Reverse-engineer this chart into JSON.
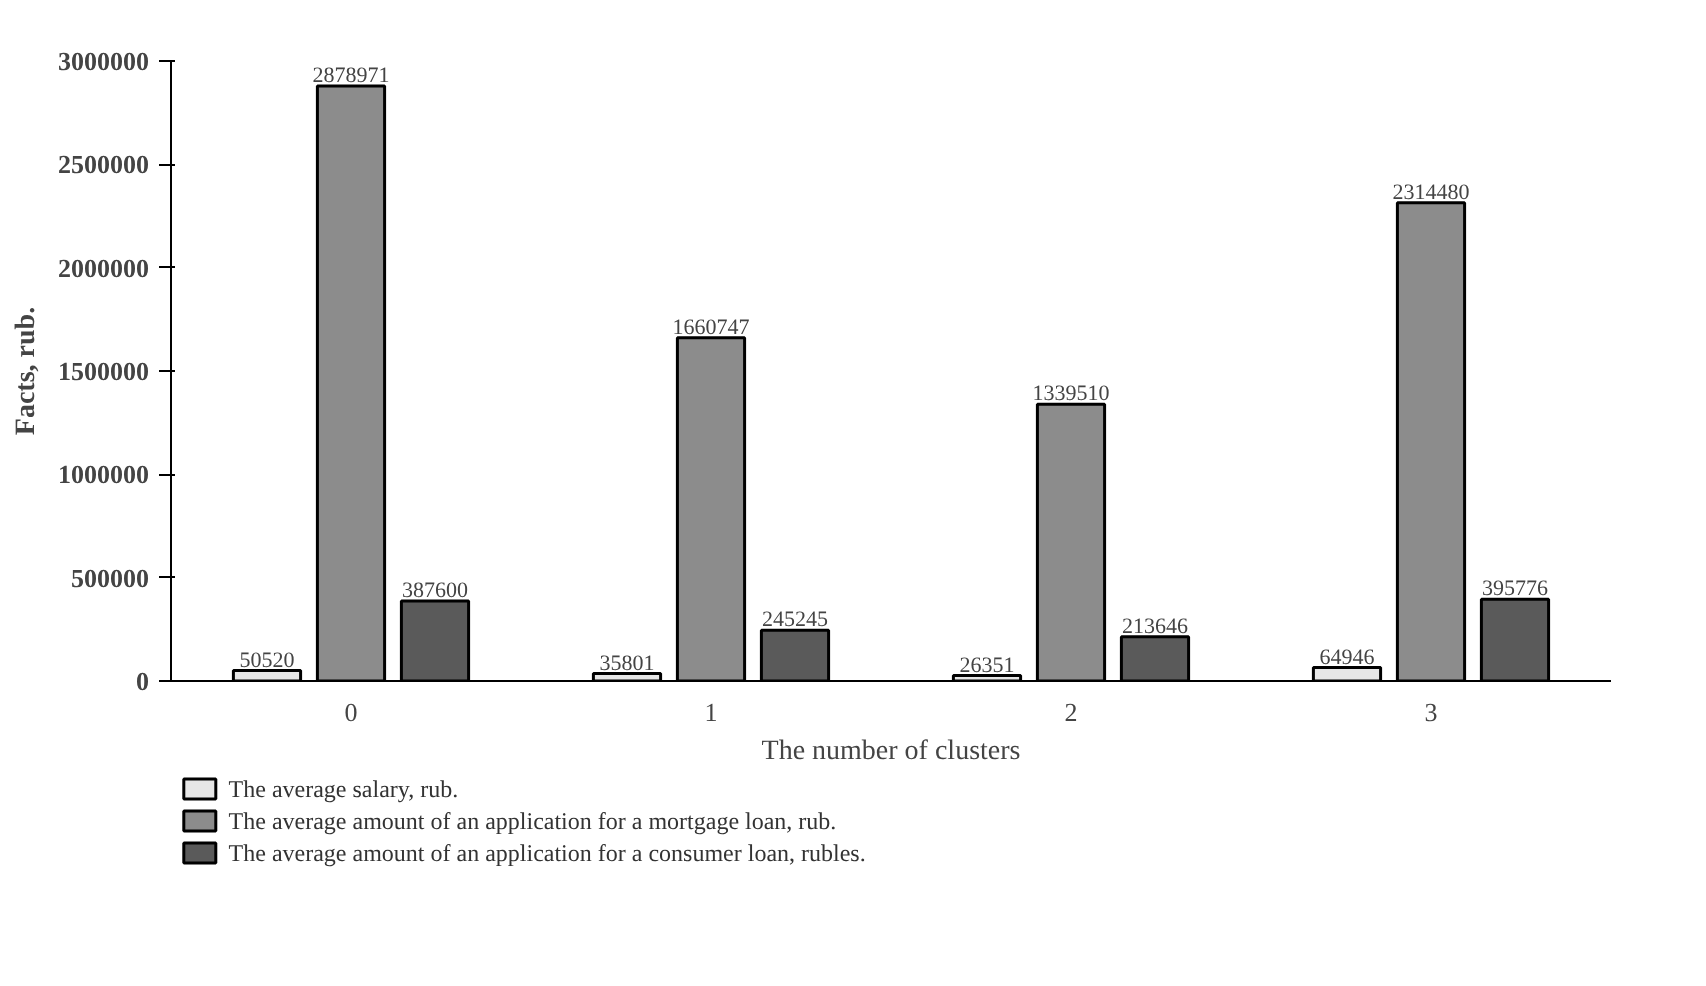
{
  "chart_data": {
    "type": "bar",
    "xlabel": "The number of clusters",
    "ylabel": "Facts, rub.",
    "categories": [
      "0",
      "1",
      "2",
      "3"
    ],
    "series": [
      {
        "name": "The average salary, rub.",
        "color": "#e6e6e6",
        "values": [
          50520,
          35801,
          26351,
          64946
        ]
      },
      {
        "name": "The average amount of an application for a mortgage loan, rub.",
        "color": "#8c8c8c",
        "values": [
          2878971,
          1660747,
          1339510,
          2314480
        ]
      },
      {
        "name": "The average amount of an application for a consumer loan, rubles.",
        "color": "#5a5a5a",
        "values": [
          387600,
          245245,
          213646,
          395776
        ]
      }
    ],
    "ylim": [
      0,
      3000000
    ],
    "yticks": [
      0,
      500000,
      1000000,
      1500000,
      2000000,
      2500000,
      3000000
    ],
    "grid": false,
    "legend": "bottom",
    "data_labels": true
  }
}
